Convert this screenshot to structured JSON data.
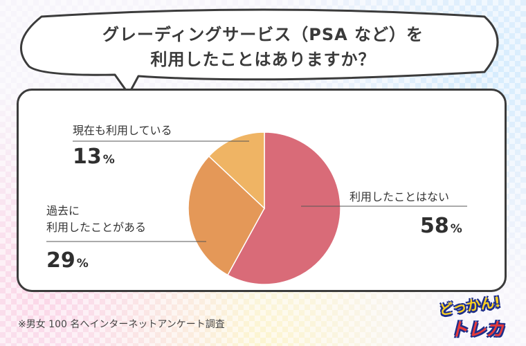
{
  "header": {
    "title_line1": "グレーディングサービス（PSA など）を",
    "title_line2": "利用したことはありますか？"
  },
  "chart_data": {
    "type": "pie",
    "title": "グレーディングサービス（PSA など）を利用したことはありますか？",
    "slices": [
      {
        "label": "利用したことはない",
        "value": 58,
        "color": "#d96b78"
      },
      {
        "label": "過去に利用したことがある",
        "value": 29,
        "color": "#e49858"
      },
      {
        "label": "現在も利用している",
        "value": 13,
        "color": "#efb464"
      }
    ],
    "unit": "%"
  },
  "labels": {
    "never": "利用したことはない",
    "past_line1": "過去に",
    "past_line2": "利用したことがある",
    "current": "現在も利用している"
  },
  "percents": {
    "never": "58",
    "past": "29",
    "current": "13",
    "symbol": "%"
  },
  "footnote": "※男女 100 名へインターネットアンケート調査",
  "logo": {
    "line1": "どっかん!",
    "line2": "トレカ"
  }
}
